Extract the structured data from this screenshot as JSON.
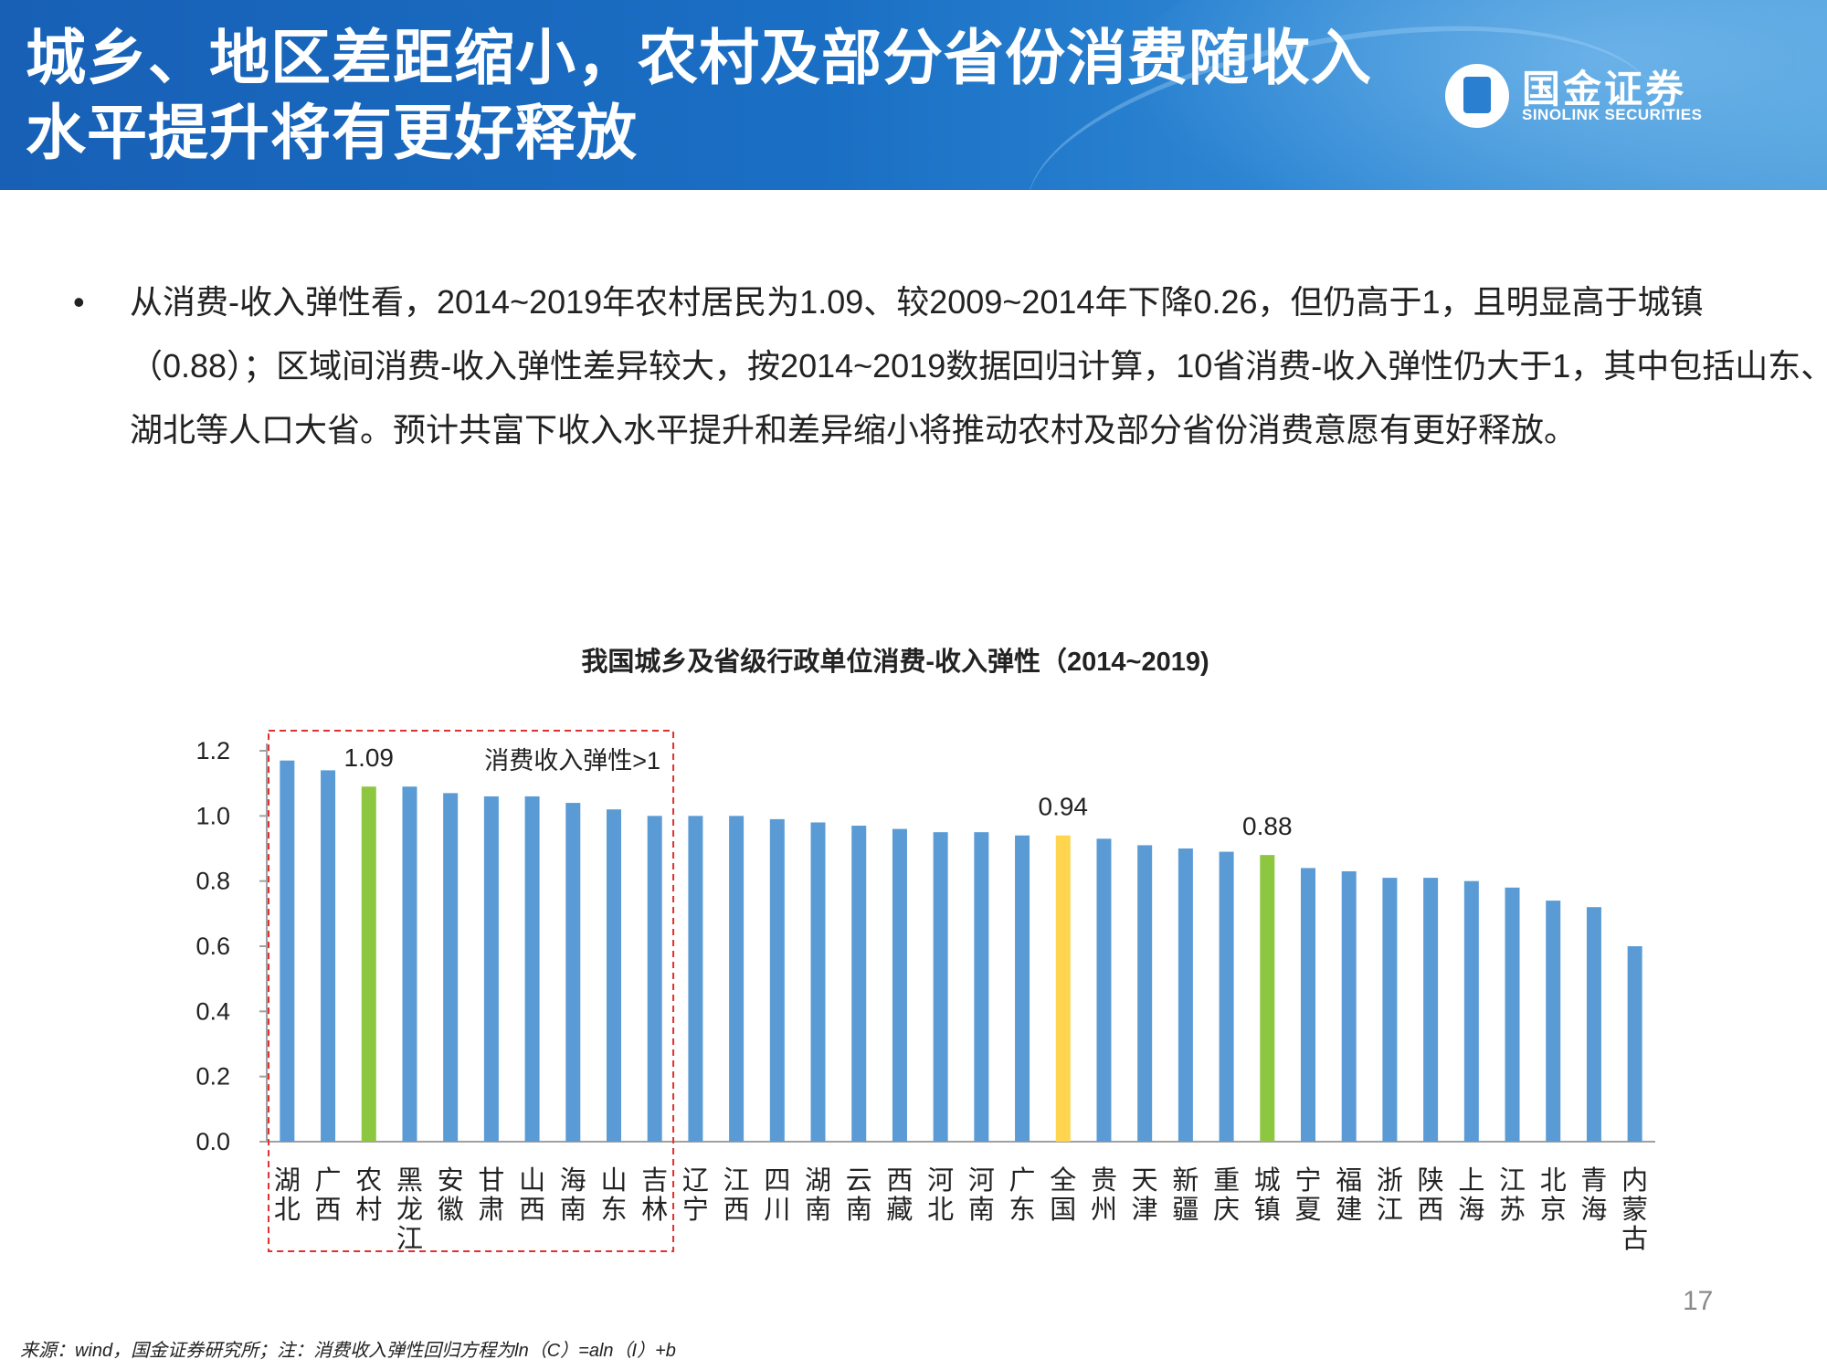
{
  "slide": {
    "title": "城乡、地区差距缩小，农村及部分省份消费随收入水平提升将有更好释放",
    "logo_cn": "国金证券",
    "logo_en": "SINOLINK SECURITIES",
    "bullet": "•",
    "body": "从消费-收入弹性看，2014~2019年农村居民为1.09、较2009~2014年下降0.26，但仍高于1，且明显高于城镇（0.88）；区域间消费-收入弹性差异较大，按2014~2019数据回归计算，10省消费-收入弹性仍大于1，其中包括山东、湖北等人口大省。预计共富下收入水平提升和差异缩小将推动农村及部分省份消费意愿有更好释放。",
    "source": "来源：wind，国金证券研究所；注：消费收入弹性回归方程为ln（C）=aln（I）+b",
    "page_number": "17"
  },
  "chart_data": {
    "type": "bar",
    "title": "我国城乡及省级行政单位消费-收入弹性（2014~2019)",
    "categories": [
      "湖北",
      "广西",
      "农村",
      "黑龙江",
      "安徽",
      "甘肃",
      "山西",
      "海南",
      "山东",
      "吉林",
      "辽宁",
      "江西",
      "四川",
      "湖南",
      "云南",
      "西藏",
      "河北",
      "河南",
      "广东",
      "全国",
      "贵州",
      "天津",
      "新疆",
      "重庆",
      "城镇",
      "宁夏",
      "福建",
      "浙江",
      "陕西",
      "上海",
      "江苏",
      "北京",
      "青海",
      "内蒙古"
    ],
    "values": [
      1.17,
      1.14,
      1.09,
      1.09,
      1.07,
      1.06,
      1.06,
      1.04,
      1.02,
      1.0,
      1.0,
      1.0,
      0.99,
      0.98,
      0.97,
      0.96,
      0.95,
      0.95,
      0.94,
      0.94,
      0.93,
      0.91,
      0.9,
      0.89,
      0.88,
      0.84,
      0.83,
      0.81,
      0.81,
      0.8,
      0.78,
      0.74,
      0.72,
      0.6
    ],
    "highlight": {
      "农村": "#8dc63f",
      "城镇": "#8dc63f",
      "全国": "#ffd54f"
    },
    "bar_color": "#5b9bd5",
    "ylim": [
      0,
      1.2
    ],
    "yticks": [
      "0.0",
      "0.2",
      "0.4",
      "0.6",
      "0.8",
      "1.0",
      "1.2"
    ],
    "data_labels": [
      {
        "category": "农村",
        "text": "1.09"
      },
      {
        "category": "全国",
        "text": "0.94"
      },
      {
        "category": "城镇",
        "text": "0.88"
      }
    ],
    "annotation": {
      "text": "消费收入弹性>1",
      "box_from": "湖北",
      "box_to": "吉林",
      "color": "#e03030"
    },
    "grid": false,
    "legend": "none"
  }
}
